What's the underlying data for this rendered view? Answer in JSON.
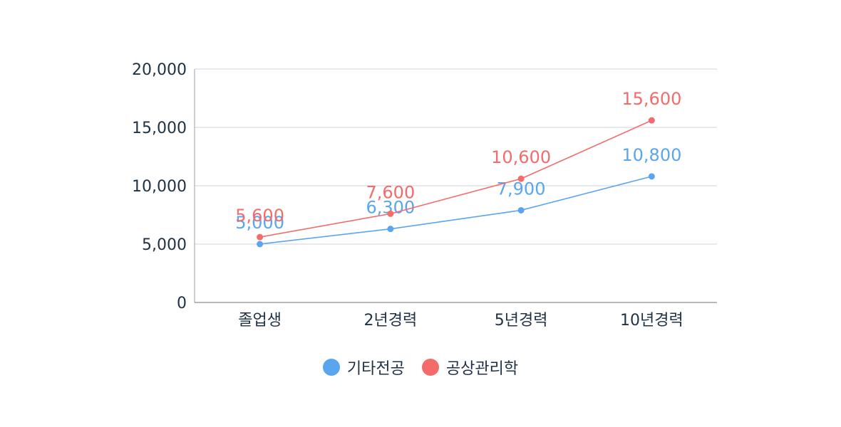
{
  "chart_data": {
    "type": "line",
    "categories": [
      "졸업생",
      "2년경력",
      "5년경력",
      "10년경력"
    ],
    "series": [
      {
        "name": "기타전공",
        "values": [
          5000,
          6300,
          7900,
          10800
        ],
        "color": "#5aa5f0",
        "labels": [
          "5,000",
          "6,300",
          "7,900",
          "10,800"
        ]
      },
      {
        "name": "공상관리학",
        "values": [
          5600,
          7600,
          10600,
          15600
        ],
        "color": "#f46b6b",
        "labels": [
          "5,600",
          "7,600",
          "10,600",
          "15,600"
        ]
      }
    ],
    "ylim": [
      0,
      20000
    ],
    "yticks": [
      0,
      5000,
      10000,
      15000,
      20000
    ],
    "ytick_labels": [
      "0",
      "5,000",
      "10,000",
      "15,000",
      "20,000"
    ],
    "grid": true,
    "legend_position": "bottom"
  }
}
